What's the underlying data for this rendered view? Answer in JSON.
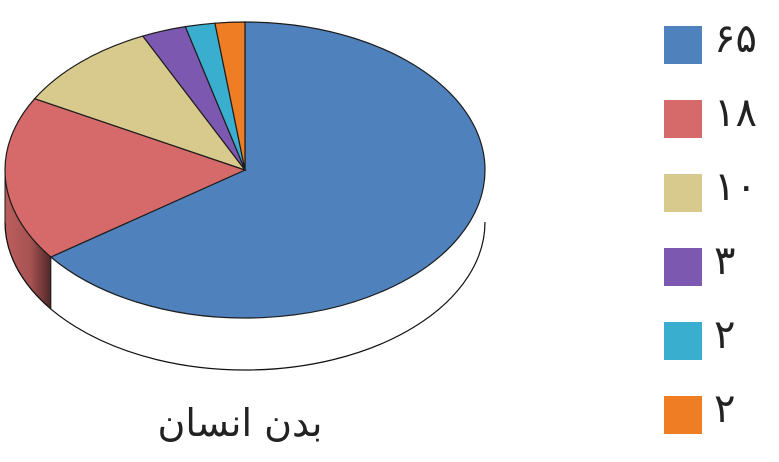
{
  "chart_data": {
    "type": "pie",
    "title": "بدن انسان",
    "labels": [
      "۶۵",
      "۱۸",
      "۱۰",
      "۳",
      "۲",
      "۲"
    ],
    "values": [
      65,
      18,
      10,
      3,
      2,
      2
    ],
    "colors": [
      "#4f81bd",
      "#d66a6a",
      "#d8c98c",
      "#7d58b1",
      "#3aaecf",
      "#ef7d24"
    ],
    "legend_placement": "right"
  }
}
